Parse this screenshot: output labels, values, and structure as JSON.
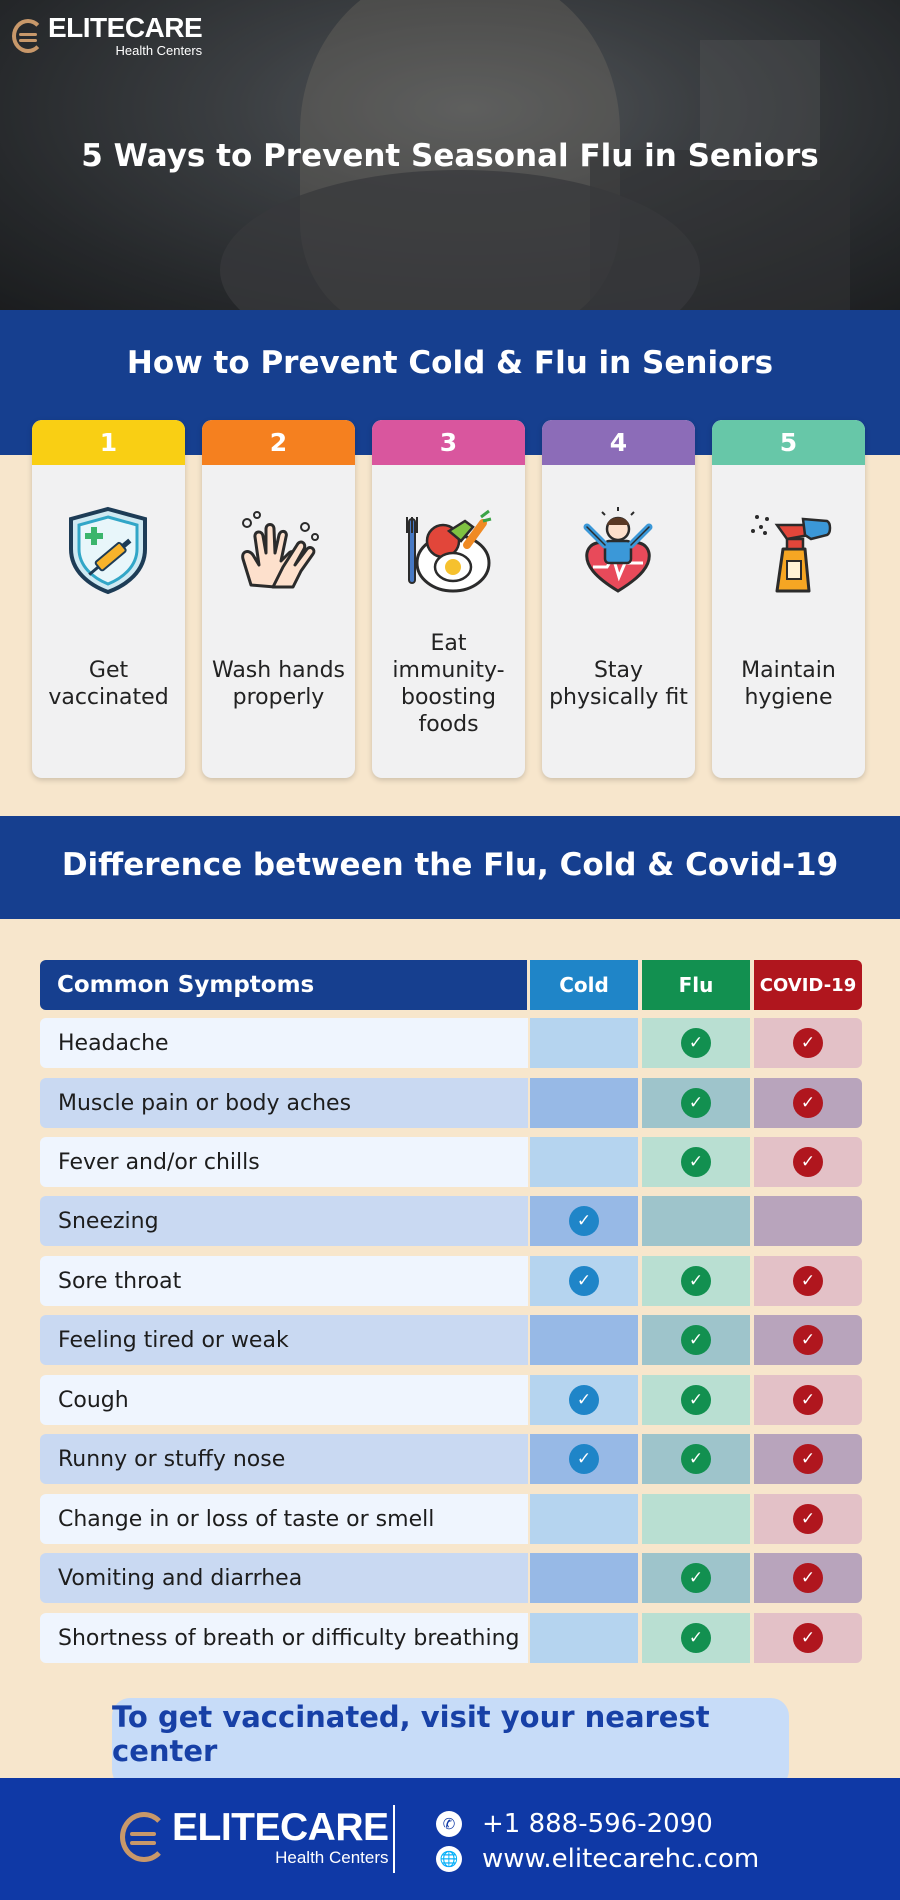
{
  "brand": {
    "name": "ELITECARE",
    "sub": "Health Centers",
    "accent": "#c8986a"
  },
  "hero": {
    "title": "5 Ways to Prevent Seasonal Flu in Seniors"
  },
  "prevent": {
    "title": "How to Prevent Cold & Flu in Seniors",
    "cards": [
      {
        "num": "1",
        "label": "Get vaccinated",
        "color": "#f9cf14",
        "icon": "shield-syringe-icon"
      },
      {
        "num": "2",
        "label": "Wash hands properly",
        "color": "#f5801f",
        "icon": "washing-hands-icon"
      },
      {
        "num": "3",
        "label": "Eat immunity-boosting foods",
        "color": "#d9569e",
        "icon": "healthy-food-icon"
      },
      {
        "num": "4",
        "label": "Stay physically fit",
        "color": "#8c6cb8",
        "icon": "fitness-heart-icon"
      },
      {
        "num": "5",
        "label": "Maintain hygiene",
        "color": "#67c7a8",
        "icon": "spray-bottle-icon"
      }
    ]
  },
  "comparison": {
    "title": "Difference between the Flu, Cold & Covid-19",
    "header": {
      "symptoms": "Common Symptoms",
      "cold": "Cold",
      "flu": "Flu",
      "covid": "COVID-19"
    },
    "colors": {
      "cold": "#1f85c8",
      "flu": "#129050",
      "covid": "#b0161e"
    },
    "rows": [
      {
        "symptom": "Headache",
        "cold": false,
        "flu": true,
        "covid": true
      },
      {
        "symptom": "Muscle pain or body aches",
        "cold": false,
        "flu": true,
        "covid": true
      },
      {
        "symptom": "Fever and/or chills",
        "cold": false,
        "flu": true,
        "covid": true
      },
      {
        "symptom": "Sneezing",
        "cold": true,
        "flu": false,
        "covid": false
      },
      {
        "symptom": "Sore throat",
        "cold": true,
        "flu": true,
        "covid": true
      },
      {
        "symptom": "Feeling tired or weak",
        "cold": false,
        "flu": true,
        "covid": true
      },
      {
        "symptom": "Cough",
        "cold": true,
        "flu": true,
        "covid": true
      },
      {
        "symptom": "Runny or stuffy nose",
        "cold": true,
        "flu": true,
        "covid": true
      },
      {
        "symptom": "Change in or loss of taste or smell",
        "cold": false,
        "flu": false,
        "covid": true
      },
      {
        "symptom": "Vomiting and diarrhea",
        "cold": false,
        "flu": true,
        "covid": true
      },
      {
        "symptom": "Shortness of breath or difficulty breathing",
        "cold": false,
        "flu": true,
        "covid": true
      }
    ]
  },
  "cta": {
    "text": "To get vaccinated, visit your nearest center"
  },
  "footer": {
    "phone": "+1 888-596-2090",
    "website": "www.elitecarehc.com"
  }
}
